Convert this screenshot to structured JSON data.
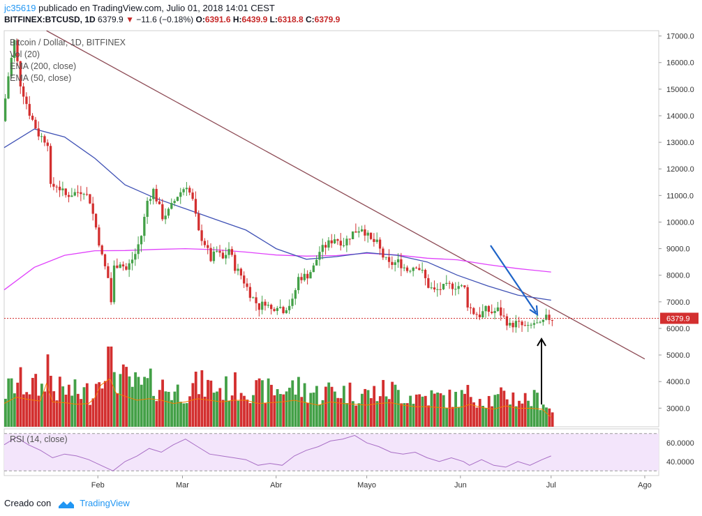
{
  "header": {
    "user": "jc35619",
    "published": "publicado en TradingView.com, Julio 01, 2018 14:01 CEST",
    "symbol": "BITFINEX:BTCUSD, 1D",
    "last": "6379.9",
    "arrow": "▼",
    "change": "−11.6 (−0.18%)",
    "o_label": "O:",
    "o_value": "6391.6",
    "h_label": "H:",
    "h_value": "6439.9",
    "l_label": "L:",
    "l_value": "6318.8",
    "c_label": "C:",
    "c_value": "6379.9"
  },
  "footer": {
    "created": "Creado con",
    "brand": "TradingView"
  },
  "colors": {
    "up": "#43a047",
    "down": "#d32f2f",
    "ema200": "#e040fb",
    "ema50": "#3f51b5",
    "trendline": "#8d4b55",
    "arrow_blue": "#1e64c8",
    "rsi": "#a86ec5",
    "rsi_bg": "#f3e5fb",
    "volume_ma": "#f57c00"
  },
  "chart_data": {
    "type": "candlestick",
    "title": "Bitcoin / Dollar, 1D, BITFINEX",
    "indicators": [
      "Vol (20)",
      "EMA (200, close)",
      "EMA (50, close)"
    ],
    "rsi_label": "RSI (14, close)",
    "last_price_label": "6379.9",
    "last_price": 6379.9,
    "ylim": [
      2300,
      17200
    ],
    "yticks": [
      "17000.0",
      "16000.0",
      "15000.0",
      "14000.0",
      "13000.0",
      "12000.0",
      "11000.0",
      "10000.0",
      "9000.0",
      "8000.0",
      "7000.0",
      "6000.0",
      "5000.0",
      "4000.0",
      "3000.0"
    ],
    "rsi_ticks": [
      "60.0000",
      "40.0000"
    ],
    "rsi_ylim": [
      25,
      75
    ],
    "x_labels": [
      "Feb",
      "Mar",
      "Abr",
      "Mayo",
      "Jun",
      "Jul",
      "Ago"
    ],
    "x_label_days": [
      31,
      59,
      90,
      120,
      151,
      181,
      212
    ],
    "days": 182,
    "price_keypoints": [
      [
        0,
        13800
      ],
      [
        2,
        15500
      ],
      [
        4,
        16800
      ],
      [
        6,
        15200
      ],
      [
        9,
        14100
      ],
      [
        12,
        13300
      ],
      [
        15,
        13000
      ],
      [
        16,
        11300
      ],
      [
        18,
        11400
      ],
      [
        21,
        11000
      ],
      [
        24,
        11100
      ],
      [
        27,
        11200
      ],
      [
        29,
        10800
      ],
      [
        31,
        9800
      ],
      [
        33,
        8700
      ],
      [
        35,
        7900
      ],
      [
        36,
        7000
      ],
      [
        37,
        8300
      ],
      [
        39,
        8500
      ],
      [
        41,
        8200
      ],
      [
        44,
        8800
      ],
      [
        46,
        9500
      ],
      [
        48,
        10800
      ],
      [
        50,
        11200
      ],
      [
        53,
        10200
      ],
      [
        55,
        10400
      ],
      [
        58,
        11000
      ],
      [
        61,
        11400
      ],
      [
        63,
        10800
      ],
      [
        65,
        9600
      ],
      [
        67,
        9200
      ],
      [
        69,
        8600
      ],
      [
        71,
        8900
      ],
      [
        73,
        8600
      ],
      [
        75,
        9000
      ],
      [
        77,
        8300
      ],
      [
        79,
        8000
      ],
      [
        82,
        7300
      ],
      [
        85,
        6800
      ],
      [
        87,
        7000
      ],
      [
        89,
        6700
      ],
      [
        91,
        6900
      ],
      [
        93,
        6700
      ],
      [
        96,
        7000
      ],
      [
        98,
        7900
      ],
      [
        101,
        8000
      ],
      [
        103,
        8300
      ],
      [
        105,
        8900
      ],
      [
        108,
        9200
      ],
      [
        110,
        9400
      ],
      [
        113,
        9200
      ],
      [
        116,
        9600
      ],
      [
        119,
        9800
      ],
      [
        122,
        9300
      ],
      [
        124,
        9200
      ],
      [
        126,
        8700
      ],
      [
        128,
        8400
      ],
      [
        131,
        8500
      ],
      [
        134,
        8200
      ],
      [
        137,
        8400
      ],
      [
        139,
        8100
      ],
      [
        141,
        7600
      ],
      [
        143,
        7400
      ],
      [
        145,
        7500
      ],
      [
        148,
        7600
      ],
      [
        151,
        7600
      ],
      [
        153,
        7500
      ],
      [
        154,
        6900
      ],
      [
        156,
        6600
      ],
      [
        158,
        6500
      ],
      [
        160,
        6700
      ],
      [
        162,
        6600
      ],
      [
        164,
        6700
      ],
      [
        166,
        6400
      ],
      [
        168,
        6100
      ],
      [
        170,
        6200
      ],
      [
        172,
        6100
      ],
      [
        174,
        6000
      ],
      [
        176,
        6200
      ],
      [
        178,
        6100
      ],
      [
        180,
        6380
      ],
      [
        181,
        6380
      ]
    ],
    "ema200_keypoints": [
      [
        0,
        7450
      ],
      [
        10,
        8300
      ],
      [
        20,
        8750
      ],
      [
        30,
        8920
      ],
      [
        40,
        8930
      ],
      [
        50,
        8970
      ],
      [
        60,
        9000
      ],
      [
        70,
        8960
      ],
      [
        80,
        8870
      ],
      [
        90,
        8760
      ],
      [
        100,
        8720
      ],
      [
        110,
        8740
      ],
      [
        120,
        8830
      ],
      [
        130,
        8760
      ],
      [
        140,
        8640
      ],
      [
        150,
        8580
      ],
      [
        160,
        8400
      ],
      [
        170,
        8250
      ],
      [
        181,
        8120
      ]
    ],
    "ema50_keypoints": [
      [
        0,
        12800
      ],
      [
        10,
        13500
      ],
      [
        20,
        13200
      ],
      [
        30,
        12400
      ],
      [
        40,
        11400
      ],
      [
        50,
        10900
      ],
      [
        60,
        10500
      ],
      [
        70,
        10100
      ],
      [
        80,
        9700
      ],
      [
        90,
        9000
      ],
      [
        100,
        8600
      ],
      [
        110,
        8700
      ],
      [
        120,
        8850
      ],
      [
        130,
        8750
      ],
      [
        140,
        8500
      ],
      [
        150,
        8000
      ],
      [
        160,
        7600
      ],
      [
        170,
        7250
      ],
      [
        181,
        7060
      ]
    ],
    "trendline": {
      "from": [
        14,
        17200
      ],
      "to": [
        212,
        4850
      ]
    },
    "volume_scale_max": 6000,
    "volume_keypoints": [
      [
        0,
        2900
      ],
      [
        4,
        3700
      ],
      [
        8,
        3400
      ],
      [
        12,
        3200
      ],
      [
        14,
        5400
      ],
      [
        16,
        3100
      ],
      [
        20,
        3000
      ],
      [
        24,
        2800
      ],
      [
        28,
        2900
      ],
      [
        30,
        3600
      ],
      [
        32,
        5200
      ],
      [
        35,
        6000
      ],
      [
        37,
        4200
      ],
      [
        40,
        3800
      ],
      [
        44,
        3300
      ],
      [
        48,
        3500
      ],
      [
        52,
        3300
      ],
      [
        56,
        2900
      ],
      [
        60,
        3100
      ],
      [
        64,
        3500
      ],
      [
        68,
        3300
      ],
      [
        72,
        3100
      ],
      [
        76,
        3300
      ],
      [
        80,
        3300
      ],
      [
        84,
        2900
      ],
      [
        88,
        3000
      ],
      [
        92,
        3100
      ],
      [
        96,
        3300
      ],
      [
        100,
        3000
      ],
      [
        104,
        2700
      ],
      [
        108,
        3100
      ],
      [
        112,
        2900
      ],
      [
        116,
        2800
      ],
      [
        120,
        2700
      ],
      [
        124,
        2900
      ],
      [
        128,
        3000
      ],
      [
        132,
        2700
      ],
      [
        136,
        2500
      ],
      [
        140,
        2500
      ],
      [
        144,
        2400
      ],
      [
        148,
        2300
      ],
      [
        152,
        2500
      ],
      [
        154,
        2800
      ],
      [
        158,
        2400
      ],
      [
        162,
        2200
      ],
      [
        166,
        2600
      ],
      [
        170,
        2300
      ],
      [
        174,
        2300
      ],
      [
        178,
        2200
      ],
      [
        181,
        1200
      ]
    ],
    "rsi_keypoints": [
      [
        0,
        58
      ],
      [
        4,
        66
      ],
      [
        8,
        58
      ],
      [
        12,
        52
      ],
      [
        16,
        44
      ],
      [
        20,
        48
      ],
      [
        24,
        46
      ],
      [
        28,
        42
      ],
      [
        32,
        36
      ],
      [
        36,
        30
      ],
      [
        40,
        40
      ],
      [
        44,
        46
      ],
      [
        48,
        54
      ],
      [
        52,
        50
      ],
      [
        56,
        58
      ],
      [
        60,
        64
      ],
      [
        64,
        56
      ],
      [
        68,
        48
      ],
      [
        72,
        46
      ],
      [
        76,
        44
      ],
      [
        80,
        42
      ],
      [
        84,
        36
      ],
      [
        88,
        38
      ],
      [
        92,
        36
      ],
      [
        96,
        46
      ],
      [
        100,
        52
      ],
      [
        104,
        56
      ],
      [
        108,
        62
      ],
      [
        112,
        64
      ],
      [
        116,
        68
      ],
      [
        120,
        60
      ],
      [
        124,
        56
      ],
      [
        128,
        50
      ],
      [
        132,
        48
      ],
      [
        136,
        50
      ],
      [
        140,
        44
      ],
      [
        144,
        40
      ],
      [
        148,
        44
      ],
      [
        152,
        40
      ],
      [
        154,
        36
      ],
      [
        158,
        42
      ],
      [
        162,
        36
      ],
      [
        166,
        34
      ],
      [
        170,
        40
      ],
      [
        174,
        36
      ],
      [
        178,
        42
      ],
      [
        181,
        46
      ]
    ]
  }
}
